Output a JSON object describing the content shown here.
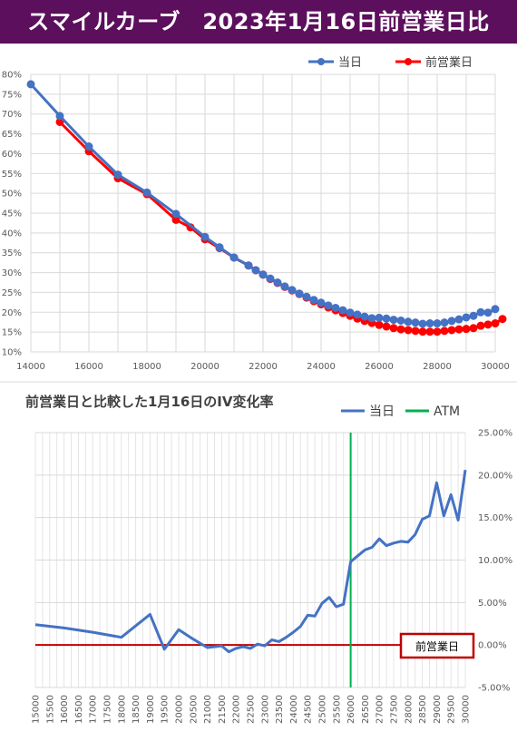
{
  "title": "スマイルカーブ　2023年1月16日前営業日比",
  "colors": {
    "title_bg": "#5b0f5c",
    "series_today": "#4472c4",
    "series_prev": "#ff0000",
    "atm": "#00b050",
    "zero": "#c00000"
  },
  "chart_data": [
    {
      "type": "line",
      "legend_position": "top-right",
      "grid": true,
      "xlim": [
        14000,
        30000
      ],
      "ylim": [
        10,
        80
      ],
      "x_ticks": [
        "14000",
        "16000",
        "18000",
        "20000",
        "22000",
        "24000",
        "26000",
        "28000",
        "30000"
      ],
      "y_ticks": [
        "10%",
        "15%",
        "20%",
        "25%",
        "30%",
        "35%",
        "40%",
        "45%",
        "50%",
        "55%",
        "60%",
        "65%",
        "70%",
        "75%",
        "80%"
      ],
      "series": [
        {
          "name": "当日",
          "points": [
            [
              14000,
              77.5
            ],
            [
              15000,
              69.5
            ],
            [
              16000,
              61.8
            ],
            [
              17000,
              54.7
            ],
            [
              18000,
              50.2
            ],
            [
              19000,
              44.8
            ],
            [
              20000,
              39
            ],
            [
              20500,
              36.4
            ],
            [
              21000,
              33.8
            ],
            [
              21500,
              31.8
            ],
            [
              21750,
              30.6
            ],
            [
              22000,
              29.5
            ],
            [
              22250,
              28.5
            ],
            [
              22500,
              27.5
            ],
            [
              22750,
              26.5
            ],
            [
              23000,
              25.6
            ],
            [
              23250,
              24.7
            ],
            [
              23500,
              23.9
            ],
            [
              23750,
              23.1
            ],
            [
              24000,
              22.4
            ],
            [
              24250,
              21.7
            ],
            [
              24500,
              21.1
            ],
            [
              24750,
              20.5
            ],
            [
              25000,
              19.9
            ],
            [
              25250,
              19.4
            ],
            [
              25500,
              18.9
            ],
            [
              25750,
              18.5
            ],
            [
              26000,
              18.6
            ],
            [
              26250,
              18.4
            ],
            [
              26500,
              18.1
            ],
            [
              26750,
              17.9
            ],
            [
              27000,
              17.6
            ],
            [
              27250,
              17.4
            ],
            [
              27500,
              17.1
            ],
            [
              27750,
              17.2
            ],
            [
              28000,
              17.2
            ],
            [
              28250,
              17.4
            ],
            [
              28500,
              17.8
            ],
            [
              28750,
              18.2
            ],
            [
              29000,
              18.7
            ],
            [
              29250,
              19.1
            ],
            [
              29500,
              20
            ],
            [
              29750,
              19.9
            ],
            [
              30000,
              20.8
            ]
          ]
        },
        {
          "name": "前営業日",
          "points": [
            [
              15000,
              68
            ],
            [
              16000,
              60.6
            ],
            [
              17000,
              53.8
            ],
            [
              18000,
              49.8
            ],
            [
              19000,
              43.3
            ],
            [
              19500,
              41.4
            ],
            [
              20000,
              38.4
            ],
            [
              20500,
              36.2
            ],
            [
              21000,
              33.8
            ],
            [
              21500,
              31.8
            ],
            [
              21750,
              30.6
            ],
            [
              22000,
              29.5
            ],
            [
              22250,
              28.4
            ],
            [
              22500,
              27.4
            ],
            [
              22750,
              26.4
            ],
            [
              23000,
              25.5
            ],
            [
              23250,
              24.6
            ],
            [
              23500,
              23.7
            ],
            [
              23750,
              22.8
            ],
            [
              24000,
              22
            ],
            [
              24250,
              21.2
            ],
            [
              24500,
              20.5
            ],
            [
              24750,
              19.8
            ],
            [
              25000,
              19.1
            ],
            [
              25250,
              18.4
            ],
            [
              25500,
              17.8
            ],
            [
              25750,
              17.3
            ],
            [
              26000,
              16.8
            ],
            [
              26250,
              16.4
            ],
            [
              26500,
              16
            ],
            [
              26750,
              15.7
            ],
            [
              27000,
              15.5
            ],
            [
              27250,
              15.3
            ],
            [
              27500,
              15.1
            ],
            [
              27750,
              15.1
            ],
            [
              28000,
              15.1
            ],
            [
              28250,
              15.3
            ],
            [
              28500,
              15.5
            ],
            [
              28750,
              15.7
            ],
            [
              29000,
              15.8
            ],
            [
              29250,
              16
            ],
            [
              29500,
              16.6
            ],
            [
              29750,
              16.9
            ],
            [
              30000,
              17.2
            ],
            [
              30250,
              18.3
            ]
          ]
        }
      ]
    },
    {
      "type": "line",
      "title": "前営業日と比較した1月16日のIV変化率",
      "legend_position": "top",
      "grid": true,
      "xlim": [
        15000,
        30000
      ],
      "ylim": [
        -5,
        25
      ],
      "x_ticks": [
        "15000",
        "15500",
        "16000",
        "16500",
        "17000",
        "17500",
        "18000",
        "18500",
        "19000",
        "19500",
        "20000",
        "20500",
        "21000",
        "21500",
        "22000",
        "22500",
        "23000",
        "23500",
        "24000",
        "24500",
        "25000",
        "25500",
        "26000",
        "26500",
        "27000",
        "27500",
        "28000",
        "28500",
        "29000",
        "29500",
        "30000"
      ],
      "y_ticks": [
        "-5.00%",
        "0.00%",
        "5.00%",
        "10.00%",
        "15.00%",
        "20.00%",
        "25.00%"
      ],
      "atm_x": 26000,
      "atm_label": "ATM",
      "annotation": "前営業日",
      "series": [
        {
          "name": "当日",
          "points": [
            [
              15000,
              2.4
            ],
            [
              16000,
              2
            ],
            [
              17000,
              1.5
            ],
            [
              18000,
              0.9
            ],
            [
              19000,
              3.6
            ],
            [
              19500,
              -0.5
            ],
            [
              20000,
              1.8
            ],
            [
              20500,
              0.7
            ],
            [
              21000,
              -0.3
            ],
            [
              21500,
              -0.1
            ],
            [
              21750,
              -0.8
            ],
            [
              22000,
              -0.4
            ],
            [
              22250,
              -0.2
            ],
            [
              22500,
              -0.4
            ],
            [
              22750,
              0.1
            ],
            [
              23000,
              -0.1
            ],
            [
              23250,
              0.6
            ],
            [
              23500,
              0.4
            ],
            [
              23750,
              0.9
            ],
            [
              24000,
              1.5
            ],
            [
              24250,
              2.2
            ],
            [
              24500,
              3.5
            ],
            [
              24750,
              3.4
            ],
            [
              25000,
              4.9
            ],
            [
              25250,
              5.6
            ],
            [
              25500,
              4.5
            ],
            [
              25750,
              4.8
            ],
            [
              26000,
              9.8
            ],
            [
              26250,
              10.5
            ],
            [
              26500,
              11.2
            ],
            [
              26750,
              11.5
            ],
            [
              27000,
              12.5
            ],
            [
              27250,
              11.7
            ],
            [
              27500,
              12
            ],
            [
              27750,
              12.2
            ],
            [
              28000,
              12.1
            ],
            [
              28250,
              13
            ],
            [
              28500,
              14.8
            ],
            [
              28750,
              15.2
            ],
            [
              29000,
              19.1
            ],
            [
              29250,
              15.2
            ],
            [
              29500,
              17.7
            ],
            [
              29750,
              14.7
            ],
            [
              30000,
              20.6
            ]
          ]
        }
      ]
    }
  ]
}
